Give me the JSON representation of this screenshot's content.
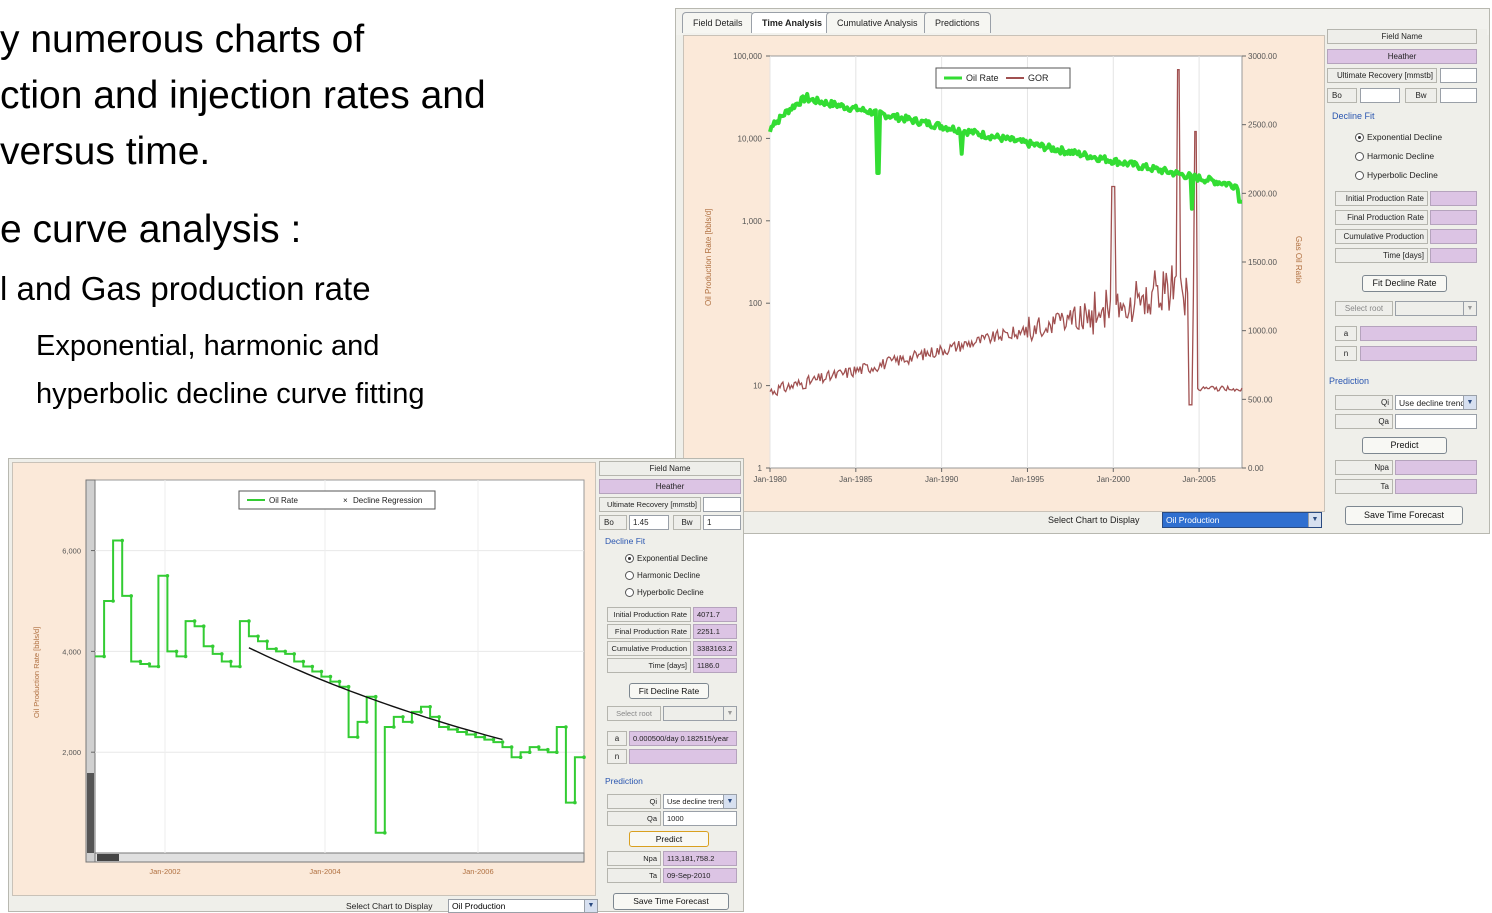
{
  "slide": {
    "line1": "y numerous charts of",
    "line2": "ction and injection rates and",
    "line3": "versus time.",
    "line4": "e curve analysis :",
    "line5": "l and Gas production rate",
    "line6": "Exponential, harmonic and",
    "line7": "hyperbolic decline curve fitting"
  },
  "colors": {
    "oil": "#33dd33",
    "gor": "#a05050",
    "chart_bg": "#fbe9d9",
    "value_fill": "#dcc4e4",
    "section_text": "#2a56b0"
  },
  "top": {
    "tabs": [
      "Field Details",
      "Time Analysis",
      "Cumulative Analysis",
      "Predictions"
    ],
    "active_tab": "Time Analysis",
    "chart": {
      "legend": [
        "Oil Rate",
        "GOR"
      ],
      "y_left_label": "Oil Production Rate [bbls/d]",
      "y_right_label": "Gas Oil Ratio",
      "y_left_ticks": [
        "100,000",
        "10,000",
        "1,000",
        "100",
        "10",
        "1"
      ],
      "y_right_ticks": [
        "3000.00",
        "2500.00",
        "2000.00",
        "1500.00",
        "1000.00",
        "500.00",
        "0.00"
      ],
      "x_ticks": [
        "Jan-1980",
        "Jan-1985",
        "Jan-1990",
        "Jan-1995",
        "Jan-2000",
        "Jan-2005"
      ]
    },
    "panel": {
      "field_name_label": "Field Name",
      "field_name": "Heather",
      "ultimate_recovery_label": "Ultimate Recovery [mmstb]",
      "ultimate_recovery": "",
      "bo_label": "Bo",
      "bo": "",
      "bw_label": "Bw",
      "bw": "",
      "decline_fit_label": "Decline Fit",
      "radio_exponential": "Exponential Decline",
      "radio_harmonic": "Harmonic Decline",
      "radio_hyperbolic": "Hyperbolic Decline",
      "initial_rate_label": "Initial Production Rate",
      "initial_rate": "",
      "final_rate_label": "Final Production Rate",
      "final_rate": "",
      "cumulative_label": "Cumulative Production",
      "cumulative": "",
      "time_label": "Time [days]",
      "time": "",
      "fit_button": "Fit Decline Rate",
      "select_root_label": "Select root",
      "a_label": "a",
      "a": "",
      "n_label": "n",
      "n": "",
      "prediction_label": "Prediction",
      "qi_label": "Qi",
      "qi": "Use decline trend",
      "qa_label": "Qa",
      "qa": "",
      "predict_button": "Predict",
      "npa_label": "Npa",
      "npa": "",
      "ta_label": "Ta",
      "ta": "",
      "save_button": "Save Time Forecast"
    },
    "footer": {
      "select_chart_label": "Select Chart to Display",
      "select_chart_value": "Oil Production"
    }
  },
  "bottom": {
    "chart": {
      "legend": [
        "Oil Rate",
        "Decline Regression"
      ],
      "y_label": "Oil Production Rate [bbls/d]",
      "y_ticks": [
        "6,000",
        "4,000",
        "2,000"
      ],
      "x_ticks": [
        "Jan-2002",
        "Jan-2004",
        "Jan-2006"
      ]
    },
    "panel": {
      "field_name_label": "Field Name",
      "field_name": "Heather",
      "ultimate_recovery_label": "Ultimate Recovery [mmstb]",
      "ultimate_recovery": "",
      "bo_label": "Bo",
      "bo": "1.45",
      "bw_label": "Bw",
      "bw": "1",
      "decline_fit_label": "Decline Fit",
      "radio_exponential": "Exponential Decline",
      "radio_harmonic": "Harmonic Decline",
      "radio_hyperbolic": "Hyperbolic Decline",
      "initial_rate_label": "Initial Production Rate",
      "initial_rate": "4071.7",
      "final_rate_label": "Final Production Rate",
      "final_rate": "2251.1",
      "cumulative_label": "Cumulative Production",
      "cumulative": "3383163.2",
      "time_label": "Time [days]",
      "time": "1186.0",
      "fit_button": "Fit Decline Rate",
      "select_root_label": "Select root",
      "a_label": "a",
      "a": "0.000500/day 0.182515/year",
      "n_label": "n",
      "n": "",
      "prediction_label": "Prediction",
      "qi_label": "Qi",
      "qi": "Use decline trend",
      "qa_label": "Qa",
      "qa": "1000",
      "predict_button": "Predict",
      "npa_label": "Npa",
      "npa": "113,181,758.2",
      "ta_label": "Ta",
      "ta": "09-Sep-2010",
      "save_button": "Save Time Forecast"
    },
    "footer": {
      "select_chart_label": "Select Chart to Display",
      "select_chart_value": "Oil Production"
    }
  }
}
